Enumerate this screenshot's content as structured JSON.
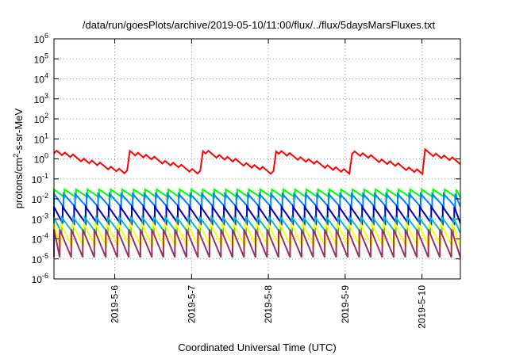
{
  "chart_data": {
    "type": "line",
    "title": "/data/run/goesPlots/archive/2019-05-10/11:00/flux/../flux/5daysMarsFluxes.txt",
    "xlabel": "Coordinated Universal Time (UTC)",
    "ylabel": "protons/cm²-s-sr-MeV",
    "y_scale": "log",
    "ylim": [
      1e-06,
      1000000.0
    ],
    "y_ticks": [
      {
        "value": 1e-06,
        "base": "10",
        "exp": "-6"
      },
      {
        "value": 1e-05,
        "base": "10",
        "exp": "-5"
      },
      {
        "value": 0.0001,
        "base": "10",
        "exp": "-4"
      },
      {
        "value": 0.001,
        "base": "10",
        "exp": "-3"
      },
      {
        "value": 0.01,
        "base": "10",
        "exp": "-2"
      },
      {
        "value": 0.1,
        "base": "10",
        "exp": "-1"
      },
      {
        "value": 1,
        "base": "10",
        "exp": "0"
      },
      {
        "value": 10.0,
        "base": "10",
        "exp": "1"
      },
      {
        "value": 100.0,
        "base": "10",
        "exp": "2"
      },
      {
        "value": 1000.0,
        "base": "10",
        "exp": "3"
      },
      {
        "value": 10000.0,
        "base": "10",
        "exp": "4"
      },
      {
        "value": 100000.0,
        "base": "10",
        "exp": "5"
      },
      {
        "value": 1000000.0,
        "base": "10",
        "exp": "6"
      }
    ],
    "xlim": [
      "2019-05-05 05:00",
      "2019-05-10 12:00"
    ],
    "x_ticks": [
      "2019-5-6",
      "2019-5-7",
      "2019-5-8",
      "2019-5-9",
      "2019-5-10"
    ],
    "grid": true,
    "series": [
      {
        "color": "#ff0000",
        "low": 0.2,
        "high": 2.5,
        "pattern": "decay-with-rises"
      },
      {
        "color": "#00ff00",
        "low": 0.012,
        "high": 0.03
      },
      {
        "color": "#0080ff",
        "low": 0.004,
        "high": 0.018
      },
      {
        "color": "#0000c0",
        "low": 0.0006,
        "high": 0.004
      },
      {
        "color": "#00c0c0",
        "low": 0.0002,
        "high": 0.0012
      },
      {
        "color": "#ffff00",
        "low": 4e-05,
        "high": 0.0006
      },
      {
        "color": "#993366",
        "low": 1.2e-05,
        "high": 0.0003
      }
    ]
  }
}
